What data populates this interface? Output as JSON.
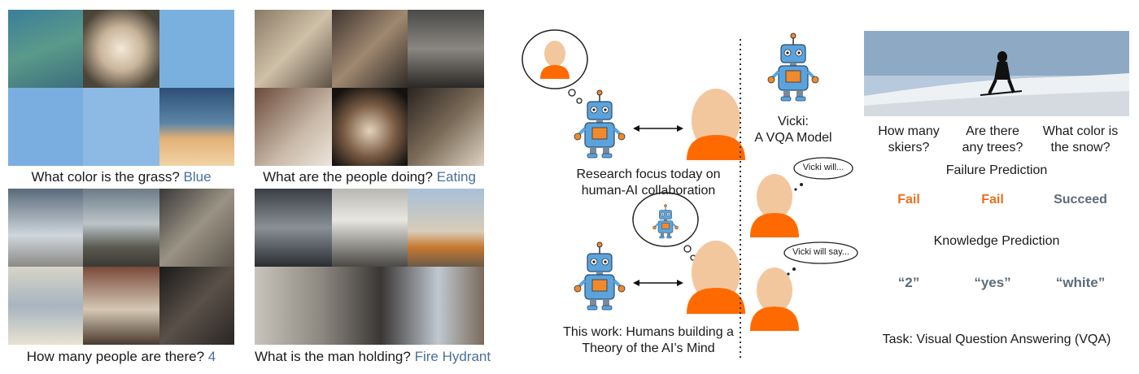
{
  "vqa_examples": [
    {
      "question": "What color is the grass?",
      "answer": "Blue"
    },
    {
      "question": "What are the people doing?",
      "answer": "Eating"
    },
    {
      "question": "How many people are there?",
      "answer": "4"
    },
    {
      "question": "What is the man holding?",
      "answer": "Fire Hydrant"
    }
  ],
  "middle": {
    "top_caption_line1": "Research focus today on",
    "top_caption_line2": "human-AI collaboration",
    "bottom_caption_line1": "This work: Humans building a",
    "bottom_caption_line2": "Theory of the AI’s Mind"
  },
  "vicki": {
    "name": "Vicki:",
    "desc": "A VQA Model",
    "bubble1": "Vicki will...",
    "bubble2": "Vicki will say..."
  },
  "task": {
    "questions": [
      {
        "line1": "How many",
        "line2": "skiers?"
      },
      {
        "line1": "Are there",
        "line2": "any trees?"
      },
      {
        "line1": "What color is",
        "line2": "the snow?"
      }
    ],
    "failure_heading": "Failure Prediction",
    "failure_results": [
      "Fail",
      "Fail",
      "Succeed"
    ],
    "knowledge_heading": "Knowledge Prediction",
    "knowledge_results": [
      "“2”",
      "“yes”",
      "“white”"
    ],
    "caption": "Task: Visual Question Answering (VQA)"
  },
  "colors": {
    "robot_blue": "#5aa4de",
    "robot_orange": "#f08a2c",
    "human_head": "#f3c79e",
    "human_body": "#ff6a00",
    "answer_blue": "#4a6f9a",
    "fail_orange": "#e8701e"
  }
}
